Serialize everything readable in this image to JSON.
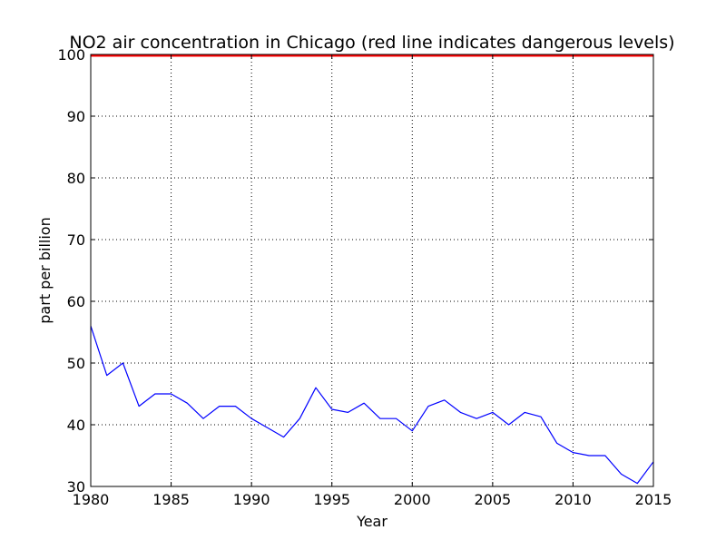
{
  "chart_data": {
    "type": "line",
    "title": "NO2 air concentration in Chicago (red line indicates dangerous levels)",
    "xlabel": "Year",
    "ylabel": "part per billion",
    "xlim": [
      1980,
      2015
    ],
    "ylim": [
      30,
      100
    ],
    "xticks": [
      1980,
      1985,
      1990,
      1995,
      2000,
      2005,
      2010,
      2015
    ],
    "yticks": [
      30,
      40,
      50,
      60,
      70,
      80,
      90,
      100
    ],
    "grid": true,
    "threshold": {
      "value": 100,
      "color": "#ff0000"
    },
    "series": [
      {
        "color": "#0000ff",
        "x": [
          1980,
          1981,
          1982,
          1983,
          1984,
          1985,
          1986,
          1987,
          1988,
          1989,
          1990,
          1991,
          1992,
          1993,
          1994,
          1995,
          1996,
          1997,
          1998,
          1999,
          2000,
          2001,
          2002,
          2003,
          2004,
          2005,
          2006,
          2007,
          2008,
          2009,
          2010,
          2011,
          2012,
          2013,
          2014,
          2015
        ],
        "y": [
          56,
          48,
          50,
          43,
          45,
          45,
          43.5,
          41,
          43,
          43,
          41,
          39.5,
          38,
          41,
          46,
          42.5,
          42,
          43.5,
          41,
          41,
          39,
          43,
          44,
          42,
          41,
          42,
          40,
          42,
          41.3,
          37,
          35.5,
          35,
          35,
          32,
          30.5,
          34
        ]
      }
    ]
  }
}
